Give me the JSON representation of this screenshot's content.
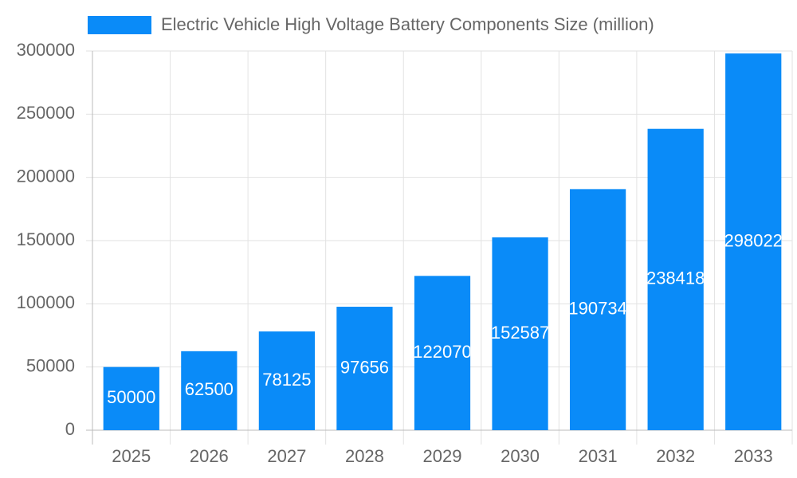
{
  "chart_data": {
    "type": "bar",
    "series": [
      {
        "name": "Electric Vehicle High Voltage Battery Components Size (million)",
        "color": "#0a8bf8",
        "values": [
          50000,
          62500,
          78125,
          97656,
          122070,
          152587,
          190734,
          238418,
          298022
        ]
      }
    ],
    "categories": [
      "2025",
      "2026",
      "2027",
      "2028",
      "2029",
      "2030",
      "2031",
      "2032",
      "2033"
    ],
    "ylim": [
      0,
      300000
    ],
    "yticks": [
      0,
      50000,
      100000,
      150000,
      200000,
      250000,
      300000
    ],
    "grid": true,
    "legend": "top"
  }
}
